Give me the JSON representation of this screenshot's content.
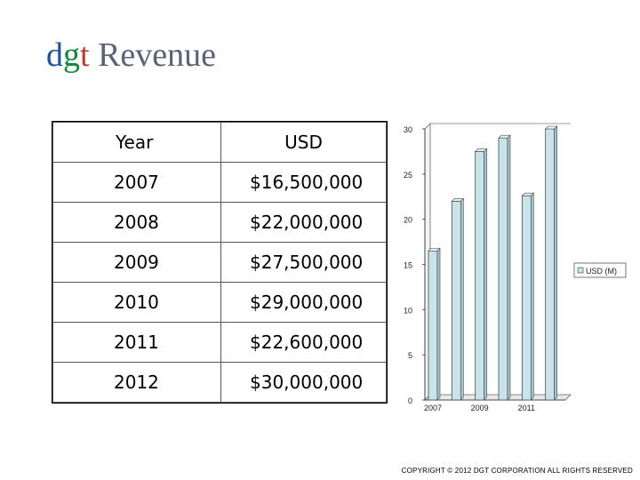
{
  "title": {
    "brand": [
      "d",
      "g",
      "t"
    ],
    "rest": " Revenue"
  },
  "table": {
    "headers": [
      "Year",
      "USD"
    ],
    "rows": [
      [
        "2007",
        "$16,500,000"
      ],
      [
        "2008",
        "$22,000,000"
      ],
      [
        "2009",
        "$27,500,000"
      ],
      [
        "2010",
        "$29,000,000"
      ],
      [
        "2011",
        "$22,600,000"
      ],
      [
        "2012",
        "$30,000,000"
      ]
    ]
  },
  "chart_data": {
    "type": "bar",
    "categories": [
      "2007",
      "2008",
      "2009",
      "2010",
      "2011",
      "2012"
    ],
    "x_tick_labels": [
      "2007",
      "2009",
      "2011"
    ],
    "series": [
      {
        "name": "USD (M)",
        "values": [
          16.5,
          22,
          27.5,
          29,
          22.6,
          30
        ]
      }
    ],
    "ylim": [
      0,
      30
    ],
    "yticks": [
      0,
      5,
      10,
      15,
      20,
      25,
      30
    ],
    "legend_position": "right",
    "bar_color": "#c8e4e8",
    "grid": false
  },
  "footer": {
    "copyright": "COPYRIGHT © 2012 DGT CORPORATION ALL RIGHTS RESERVED"
  }
}
